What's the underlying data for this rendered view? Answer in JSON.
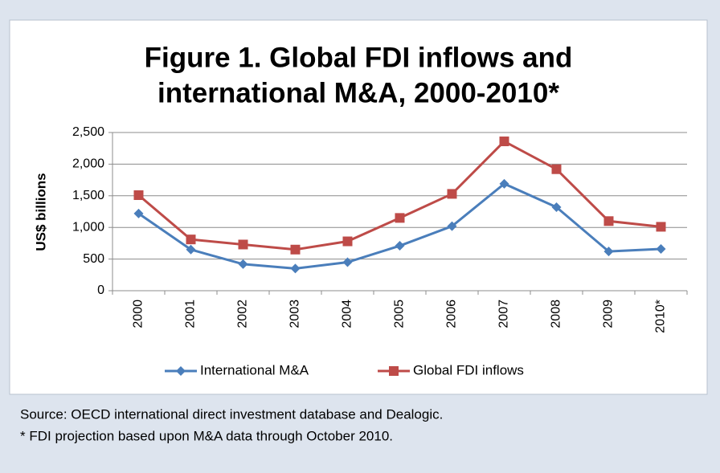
{
  "chart_data": {
    "type": "line",
    "title": [
      "Figure 1. Global FDI inflows and",
      "international M&A, 2000-2010*"
    ],
    "ylabel": "US$ billions",
    "categories": [
      "2000",
      "2001",
      "2002",
      "2003",
      "2004",
      "2005",
      "2006",
      "2007",
      "2008",
      "2009",
      "2010*"
    ],
    "series": [
      {
        "name": "International M&A",
        "color": "#4a7ebb",
        "marker": "diamond",
        "values": [
          1220,
          650,
          420,
          350,
          450,
          710,
          1020,
          1690,
          1320,
          620,
          660
        ]
      },
      {
        "name": "Global FDI inflows",
        "color": "#be4b48",
        "marker": "square",
        "values": [
          1510,
          810,
          730,
          650,
          780,
          1150,
          1530,
          2360,
          1920,
          1100,
          1010
        ]
      }
    ],
    "ylim": [
      0,
      2500
    ],
    "yticks": [
      0,
      500,
      {
        "value": 1000,
        "label": "1,000"
      },
      {
        "value": 1500,
        "label": "1,500"
      },
      {
        "value": 2000,
        "label": "2,000"
      },
      {
        "value": 2500,
        "label": "2,500"
      }
    ],
    "grid": true,
    "legend": "bottom"
  },
  "footnotes": [
    "Source: OECD international direct investment database and Dealogic.",
    "* FDI projection based upon M&A data through October 2010."
  ]
}
